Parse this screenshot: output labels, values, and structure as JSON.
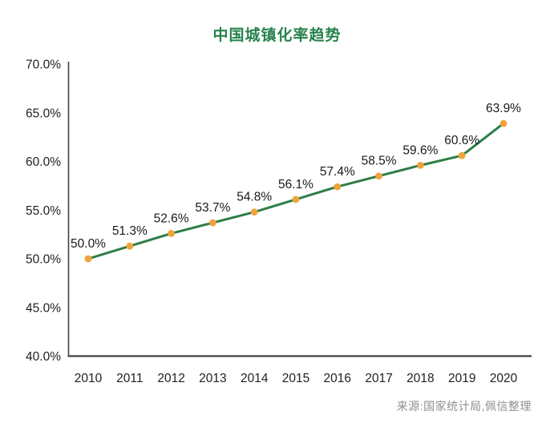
{
  "title": "中国城镇化率趋势",
  "source_note": "来源:国家统计局,佩信整理",
  "colors": {
    "background": "#ffffff",
    "title": "#27824d",
    "line": "#2e7d46",
    "marker": "#f0a33c",
    "axis": "#404040",
    "tick_text": "#1f1f1f",
    "data_label": "#1a1a1a",
    "source_text": "#8f8f8f"
  },
  "chart_data": {
    "type": "line",
    "title": "中国城镇化率趋势",
    "categories": [
      "2010",
      "2011",
      "2012",
      "2013",
      "2014",
      "2015",
      "2016",
      "2017",
      "2018",
      "2019",
      "2020"
    ],
    "values": [
      50.0,
      51.3,
      52.6,
      53.7,
      54.8,
      56.1,
      57.4,
      58.5,
      59.6,
      60.6,
      63.9
    ],
    "data_labels": [
      "50.0%",
      "51.3%",
      "52.6%",
      "53.7%",
      "54.8%",
      "56.1%",
      "57.4%",
      "58.5%",
      "59.6%",
      "60.6%",
      "63.9%"
    ],
    "xlabel": "",
    "ylabel": "",
    "ylim": [
      40,
      70
    ],
    "y_ticks": [
      {
        "value": 40,
        "label": "40.0%"
      },
      {
        "value": 45,
        "label": "45.0%"
      },
      {
        "value": 50,
        "label": "50.0%"
      },
      {
        "value": 55,
        "label": "55.0%"
      },
      {
        "value": 60,
        "label": "60.0%"
      },
      {
        "value": 65,
        "label": "65.0%"
      },
      {
        "value": 70,
        "label": "70.0%"
      }
    ],
    "grid": false,
    "legend_position": "none",
    "marker_shape": "circle",
    "source": "来源:国家统计局,佩信整理"
  }
}
